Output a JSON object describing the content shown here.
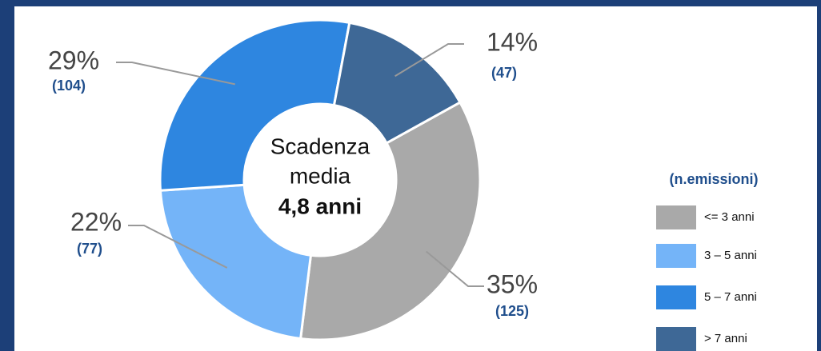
{
  "chart_data": {
    "type": "donut",
    "categories": [
      "<= 3 anni",
      "3 – 5 anni",
      "5 – 7 anni",
      "> 7 anni"
    ],
    "values": [
      35,
      22,
      29,
      14
    ],
    "value_labels": [
      "35%",
      "22%",
      "29%",
      "14%"
    ],
    "counts": [
      125,
      77,
      104,
      47
    ],
    "count_labels": [
      "(125)",
      "(77)",
      "(104)",
      "(47)"
    ],
    "colors": [
      "#a9a9a9",
      "#74b4f8",
      "#2e86e0",
      "#3e6896"
    ],
    "center_text": [
      "Scadenza",
      "media",
      "4,8 anni"
    ],
    "legend_title": "(n.emissioni)",
    "legend": "right"
  }
}
